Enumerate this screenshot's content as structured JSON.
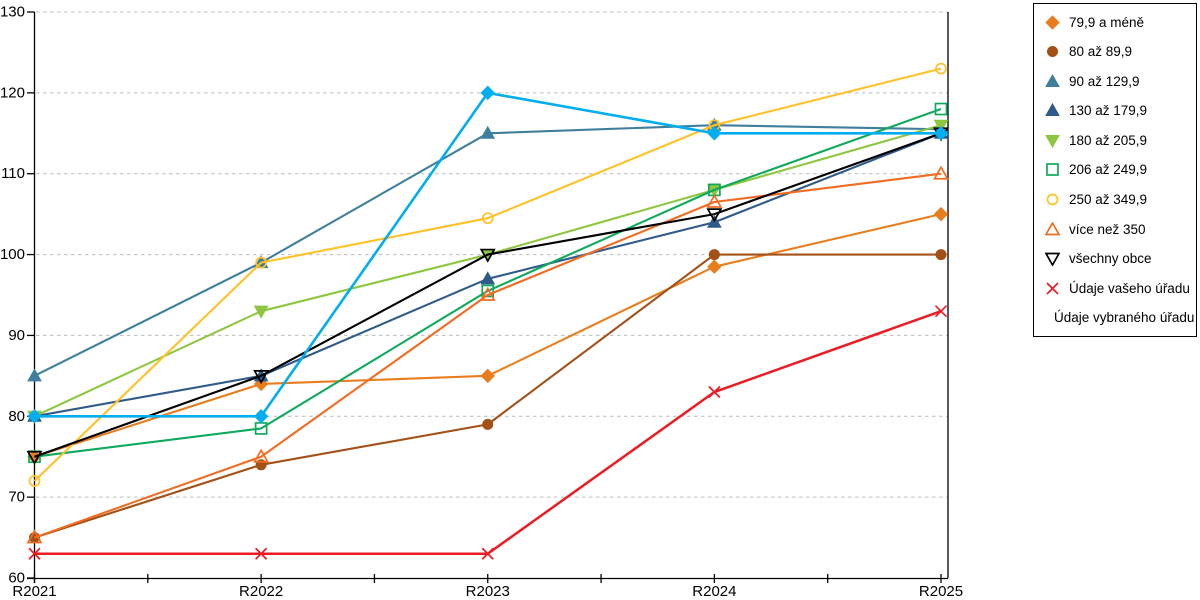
{
  "chart_data": {
    "type": "line",
    "title": "",
    "xlabel": "",
    "ylabel": "",
    "categories": [
      "R2021",
      "R2022",
      "R2023",
      "R2024",
      "R2025"
    ],
    "y_ticks": [
      60,
      70,
      80,
      90,
      100,
      110,
      120,
      130
    ],
    "ylim": [
      60,
      130
    ],
    "grid": "horizontal-dashed",
    "legend_position": "right",
    "series": [
      {
        "name": "79,9 a méně",
        "marker": "diamond",
        "filled": true,
        "color": "#E87D1E",
        "values": [
          75,
          84,
          85,
          98.5,
          105
        ]
      },
      {
        "name": "80 až 89,9",
        "marker": "circle",
        "filled": true,
        "color": "#A35117",
        "values": [
          65,
          74,
          79,
          100,
          100
        ]
      },
      {
        "name": "90 až 129,9",
        "marker": "triangle-up",
        "filled": true,
        "color": "#3F7F9D",
        "values": [
          85,
          99,
          115,
          116,
          115.5
        ]
      },
      {
        "name": "130 až 179,9",
        "marker": "triangle-up",
        "filled": true,
        "color": "#2E5B8A",
        "values": [
          80,
          85,
          97,
          104,
          115
        ]
      },
      {
        "name": "180 až 205,9",
        "marker": "triangle-down",
        "filled": true,
        "color": "#8DC63F",
        "values": [
          80,
          93,
          100,
          108,
          116
        ]
      },
      {
        "name": "206 až 249,9",
        "marker": "square",
        "filled": false,
        "color": "#0FA95C",
        "values": [
          75,
          78.5,
          95.5,
          108,
          118
        ]
      },
      {
        "name": "250 až 349,9",
        "marker": "circle",
        "filled": false,
        "color": "#FFC125",
        "values": [
          72,
          99,
          104.5,
          116,
          123
        ]
      },
      {
        "name": "více než 350",
        "marker": "triangle-up",
        "filled": false,
        "color": "#F26B21",
        "values": [
          65,
          75,
          95,
          106.5,
          110
        ]
      },
      {
        "name": "všechny obce",
        "marker": "triangle-down",
        "filled": false,
        "color": "#000000",
        "values": [
          75,
          85,
          100,
          105,
          115
        ]
      },
      {
        "name": "Údaje vašeho úřadu",
        "marker": "x",
        "filled": false,
        "color": "#EB1C24",
        "values": [
          63,
          63,
          63,
          83,
          93
        ],
        "line_width": 2.5
      },
      {
        "name": "Údaje vybraného úřadu",
        "marker": "diamond",
        "filled": true,
        "color": "#00AEEF",
        "values": [
          80,
          80,
          120,
          115,
          115
        ],
        "line_width": 2.6
      }
    ]
  }
}
